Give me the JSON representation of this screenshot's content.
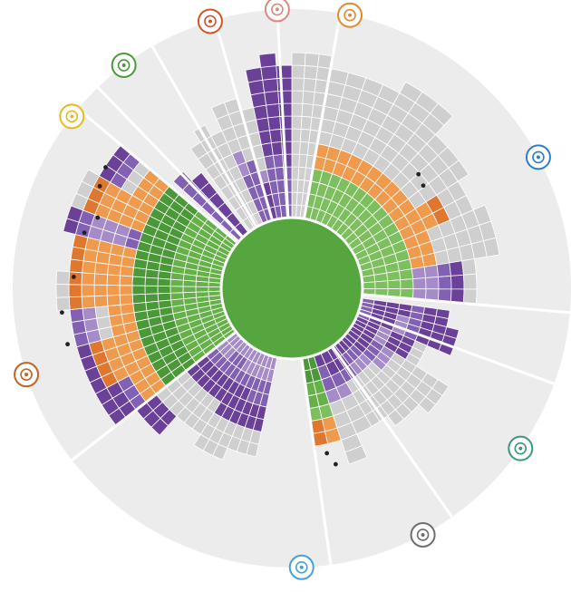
{
  "diagram": {
    "palette": {
      "background_disc": "#ececec",
      "divider": "#ffffff",
      "center": "#55a63e",
      "green_light": "#7dbf5e",
      "green_mid": "#66b04a",
      "green_dark": "#4a9838",
      "orange": "#ef9a4d",
      "orange_dark": "#e0772e",
      "purple_light": "#a58bc7",
      "purple": "#8260b3",
      "purple_dark": "#6a4099",
      "grey": "#cfcfcf",
      "block_stroke": "#ffffff",
      "marker": "#222222"
    },
    "categories": [
      {
        "name": "gut-icon",
        "color": "#e8b820",
        "angle": -52
      },
      {
        "name": "respiratory-icon",
        "color": "#4a9a3a",
        "angle": -37
      },
      {
        "name": "heart-icon",
        "color": "#d2542c",
        "angle": -17
      },
      {
        "name": "lungs-icon",
        "color": "#d98a80",
        "angle": -3
      },
      {
        "name": "reproductive-icon",
        "color": "#e08a30",
        "angle": 12
      },
      {
        "name": "head-icon",
        "color": "#2f7cc9",
        "angle": 62
      },
      {
        "name": "eye-icon",
        "color": "#3c9a78",
        "angle": 125
      },
      {
        "name": "ear-icon",
        "color": "#6f6f6f",
        "angle": 152
      },
      {
        "name": "skin-icon",
        "color": "#4aa0d8",
        "angle": 178
      },
      {
        "name": "skeleton-icon",
        "color": "#c0642a",
        "angle": 252
      }
    ]
  }
}
